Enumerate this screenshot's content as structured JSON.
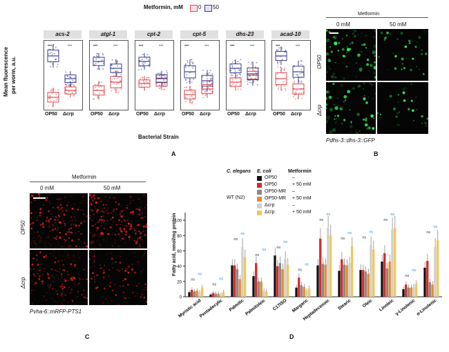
{
  "panelA": {
    "letter": "A",
    "legend_title": "Metformin, mM",
    "legend_items": [
      {
        "label": "0",
        "color": "#e0474c"
      },
      {
        "label": "50",
        "color": "#3a3f8f"
      }
    ],
    "y_label_line1": "Mean fluorescence",
    "y_label_line2": "per worm, a.u.",
    "x_label": "Bacterial Strain",
    "strains": [
      "OP50",
      "Δcrp"
    ],
    "genes": [
      "acs-2",
      "atgl-1",
      "cpt-2",
      "cpt-5",
      "dhs-23",
      "acad-10"
    ]
  },
  "panelB": {
    "letter": "B",
    "title": "Metformin",
    "conditions": [
      "0 mM",
      "50 mM"
    ],
    "rows": [
      "OP50",
      "Δcrp"
    ],
    "reporter": "Pdhs-3::dhs-3::GFP"
  },
  "panelC": {
    "letter": "C",
    "title": "Metformin",
    "conditions": [
      "0 mM",
      "50 mM"
    ],
    "rows": [
      "OP50",
      "Δcrp"
    ],
    "reporter": "Pvha-6::mRFP-PTS1"
  },
  "panelD": {
    "letter": "D",
    "legend_header": [
      "C. elegans",
      "E. coli",
      "Metformin"
    ],
    "legend_host": "WT (N2)",
    "legend_rows": [
      {
        "strain": "OP50",
        "metformin": "–",
        "color": "#111111"
      },
      {
        "strain": "OP50",
        "metformin": "+ 50 mM",
        "color": "#d62a2a"
      },
      {
        "strain": "OP50-MR",
        "metformin": "–",
        "color": "#8a8a8a"
      },
      {
        "strain": "OP50-MR",
        "metformin": "+ 50 mM",
        "color": "#e58a2c"
      },
      {
        "strain": "Δcrp",
        "metformin": "–",
        "color": "#cfcfcf"
      },
      {
        "strain": "Δcrp",
        "metformin": "+ 50 mM",
        "color": "#f0c75a"
      }
    ],
    "y_label": "Fatty acid, nmol/mg protein",
    "y_ticks": [
      "0",
      "20",
      "40",
      "60",
      "80",
      "100"
    ],
    "categories": [
      "Myristic acid",
      "Pentadecylic",
      "Palmitic",
      "Palmitoleic",
      "C17ISO",
      "Margaric",
      "Heptadecenoic",
      "Stearic",
      "Oleic",
      "Linoleic",
      "γ-Linolenic",
      "α-Linolenic"
    ],
    "annotation_ns": "ns"
  },
  "chart_data": [
    {
      "type": "bar",
      "title": "",
      "xlabel": "",
      "ylabel": "Fatty acid, nmol/mg protein",
      "ylim": [
        0,
        110
      ],
      "categories": [
        "Myristic acid",
        "Pentadecylic",
        "Palmitic",
        "Palmitoleic",
        "C17ISO",
        "Margaric",
        "Heptadecenoic",
        "Stearic",
        "Oleic",
        "Linoleic",
        "γ-Linolenic",
        "α-Linolenic"
      ],
      "series": [
        {
          "name": "OP50 –",
          "color": "#111111",
          "values": [
            6,
            3,
            41,
            27,
            54,
            12,
            41,
            34,
            35,
            46,
            10,
            38
          ]
        },
        {
          "name": "OP50 + 50 mM",
          "color": "#d62a2a",
          "values": [
            9,
            5,
            41,
            44,
            40,
            25,
            76,
            49,
            35,
            57,
            16,
            47
          ]
        },
        {
          "name": "OP50-MR –",
          "color": "#8a8a8a",
          "values": [
            7,
            4,
            36,
            20,
            44,
            15,
            43,
            42,
            33,
            37,
            12,
            19
          ]
        },
        {
          "name": "OP50-MR + 50 mM",
          "color": "#e58a2c",
          "values": [
            8,
            4,
            23,
            20,
            36,
            13,
            42,
            41,
            30,
            46,
            12,
            16
          ]
        },
        {
          "name": "Δcrp –",
          "color": "#cfcfcf",
          "values": [
            6,
            3,
            65,
            8,
            50,
            8,
            90,
            44,
            67,
            88,
            13,
            65
          ]
        },
        {
          "name": "Δcrp + 50 mM",
          "color": "#f0c75a",
          "values": [
            12,
            6,
            52,
            7,
            42,
            11,
            80,
            66,
            62,
            90,
            17,
            74
          ]
        }
      ]
    }
  ]
}
